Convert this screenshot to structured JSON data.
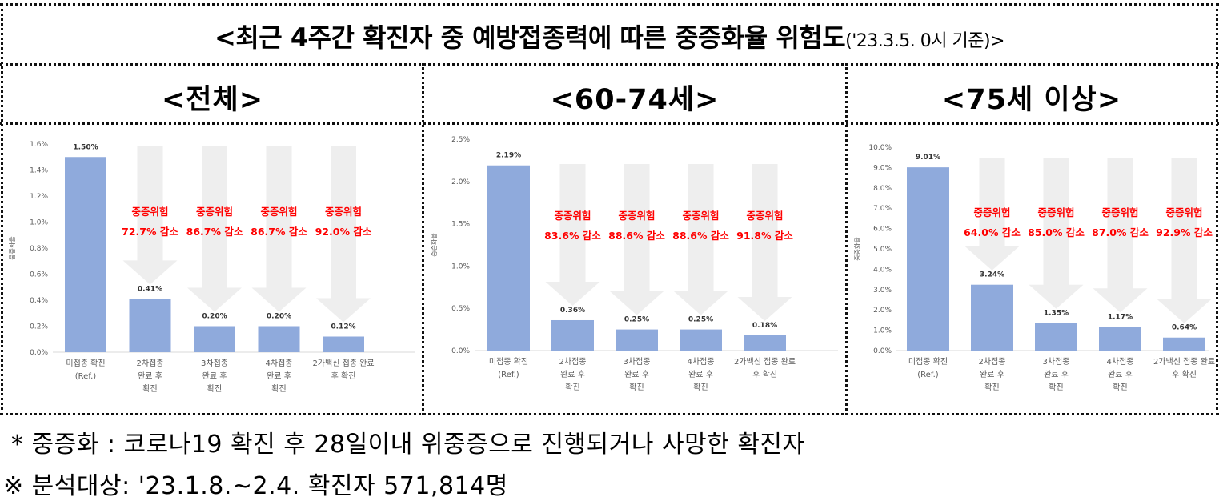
{
  "title": {
    "main": "<최근 4주간 확진자 중 예방접종력에 따른 중증화율 위험도",
    "sub": "('23.3.5. 0시 기준)>"
  },
  "colors": {
    "bar": "#8faadc",
    "arrow": "#eeeeee",
    "risk_text": "#ff0000",
    "axis_text": "#595959"
  },
  "panels": [
    {
      "title": "<전체>"
    },
    {
      "title": "<60-74세>"
    },
    {
      "title": "<75세 이상>"
    }
  ],
  "chart_data": [
    {
      "type": "bar",
      "panel_title": "<전체>",
      "ylabel": "중증화율",
      "ylim": [
        0,
        1.6
      ],
      "yticks": [
        "0.0%",
        "0.2%",
        "0.4%",
        "0.6%",
        "0.8%",
        "1.0%",
        "1.2%",
        "1.4%",
        "1.6%"
      ],
      "categories": [
        [
          "미접종 확진",
          "(Ref.)"
        ],
        [
          "2차접종",
          "완료 후",
          "확진"
        ],
        [
          "3차접종",
          "완료 후",
          "확진"
        ],
        [
          "4차접종",
          "완료 후",
          "확진"
        ],
        [
          "2가백신 접종 완료",
          "후 확진"
        ]
      ],
      "values": [
        1.5,
        0.41,
        0.2,
        0.2,
        0.12
      ],
      "data_labels": [
        "1.50%",
        "0.41%",
        "0.20%",
        "0.20%",
        "0.12%"
      ],
      "annotations": [
        {
          "heading": "중증위험",
          "text": "72.7% 감소"
        },
        {
          "heading": "중증위험",
          "text": "86.7% 감소"
        },
        {
          "heading": "중증위험",
          "text": "86.7% 감소"
        },
        {
          "heading": "중증위험",
          "text": "92.0% 감소"
        }
      ]
    },
    {
      "type": "bar",
      "panel_title": "<60-74세>",
      "ylabel": "중증화율",
      "ylim": [
        0,
        2.5
      ],
      "yticks": [
        "0.0%",
        "0.5%",
        "1.0%",
        "1.5%",
        "2.0%",
        "2.5%"
      ],
      "categories": [
        [
          "미접종 확진",
          "(Ref.)"
        ],
        [
          "2차접종",
          "완료 후",
          "확진"
        ],
        [
          "3차접종",
          "완료 후",
          "확진"
        ],
        [
          "4차접종",
          "완료 후",
          "확진"
        ],
        [
          "2가백신 접종 완료",
          "후 확진"
        ]
      ],
      "values": [
        2.19,
        0.36,
        0.25,
        0.25,
        0.18
      ],
      "data_labels": [
        "2.19%",
        "0.36%",
        "0.25%",
        "0.25%",
        "0.18%"
      ],
      "annotations": [
        {
          "heading": "중증위험",
          "text": "83.6% 감소"
        },
        {
          "heading": "중증위험",
          "text": "88.6% 감소"
        },
        {
          "heading": "중증위험",
          "text": "88.6% 감소"
        },
        {
          "heading": "중증위험",
          "text": "91.8% 감소"
        }
      ]
    },
    {
      "type": "bar",
      "panel_title": "<75세 이상>",
      "ylabel": "중증화율",
      "ylim": [
        0,
        10
      ],
      "yticks": [
        "0.0%",
        "1.0%",
        "2.0%",
        "3.0%",
        "4.0%",
        "5.0%",
        "6.0%",
        "7.0%",
        "8.0%",
        "9.0%",
        "10.0%"
      ],
      "categories": [
        [
          "미접종 확진",
          "(Ref.)"
        ],
        [
          "2차접종",
          "완료 후",
          "확진"
        ],
        [
          "3차접종",
          "완료 후",
          "확진"
        ],
        [
          "4차접종",
          "완료 후",
          "확진"
        ],
        [
          "2가백신 접종 완료",
          "후 확진"
        ]
      ],
      "values": [
        9.01,
        3.24,
        1.35,
        1.17,
        0.64
      ],
      "data_labels": [
        "9.01%",
        "3.24%",
        "1.35%",
        "1.17%",
        "0.64%"
      ],
      "annotations": [
        {
          "heading": "중증위험",
          "text": "64.0% 감소"
        },
        {
          "heading": "중증위험",
          "text": "85.0% 감소"
        },
        {
          "heading": "중증위험",
          "text": "87.0% 감소"
        },
        {
          "heading": "중증위험",
          "text": "92.9% 감소"
        }
      ]
    }
  ],
  "notes": [
    "* 중증화 : 코로나19 확진 후 28일이내 위중증으로 진행되거나 사망한 확진자",
    "※ 분석대상: '23.1.8.~2.4. 확진자 571,814명"
  ]
}
